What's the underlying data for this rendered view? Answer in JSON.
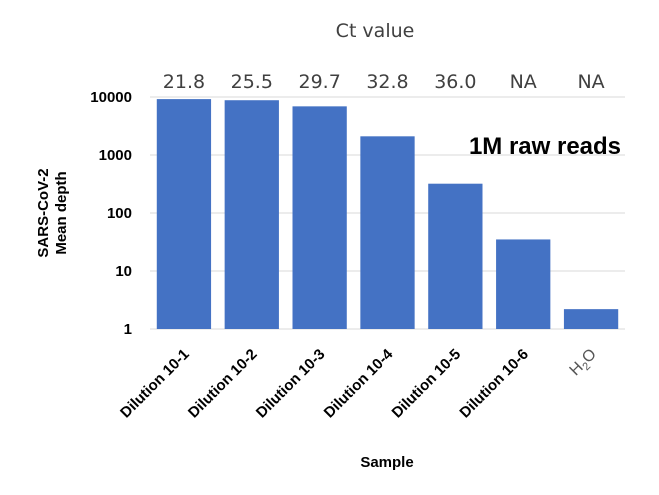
{
  "chart_data": {
    "type": "bar",
    "title": "Ct value",
    "categories": [
      "Dilution 10-1",
      "Dilution 10-2",
      "Dilution 10-3",
      "Dilution 10-4",
      "Dilution 10-5",
      "Dilution 10-6",
      "H2O"
    ],
    "ct_values": [
      "21.8",
      "25.5",
      "29.7",
      "32.8",
      "36.0",
      "NA",
      "NA"
    ],
    "values": [
      9200,
      8800,
      6900,
      2100,
      320,
      35,
      2.2
    ],
    "xlabel": "Sample",
    "ylabel_line1": "SARS-CoV-2",
    "ylabel_line2": "Mean depth",
    "y_scale": "log",
    "ylim": [
      1,
      10000
    ],
    "y_ticks": [
      "1",
      "10",
      "100",
      "1000",
      "10000"
    ],
    "grid": true,
    "annotation": "1M raw reads",
    "bar_color": "#4472C4",
    "grid_color": "#D9D9D9"
  }
}
